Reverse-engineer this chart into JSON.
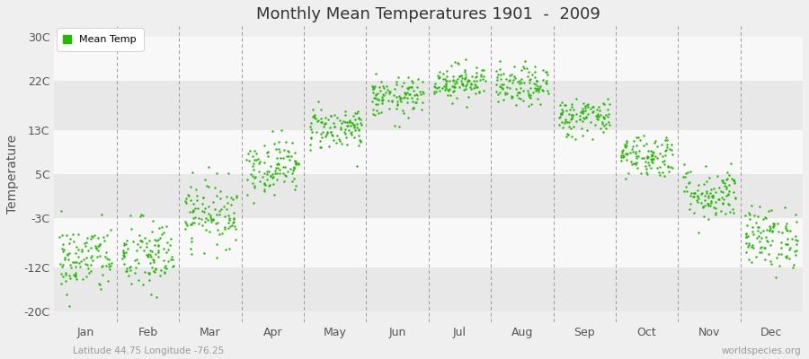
{
  "title": "Monthly Mean Temperatures 1901  -  2009",
  "ylabel": "Temperature",
  "subtitle_left": "Latitude 44.75 Longitude -76.25",
  "subtitle_right": "worldspecies.org",
  "legend_label": "Mean Temp",
  "dot_color": "#22bb00",
  "background_color": "#efefef",
  "band_light": "#f8f8f8",
  "band_dark": "#e8e8e8",
  "yticks": [
    -20,
    -12,
    -3,
    5,
    13,
    22,
    30
  ],
  "ytick_labels": [
    "-20C",
    "-12C",
    "-3C",
    "5C",
    "13C",
    "22C",
    "30C"
  ],
  "ylim": [
    -22,
    32
  ],
  "months": [
    "Jan",
    "Feb",
    "Mar",
    "Apr",
    "May",
    "Jun",
    "Jul",
    "Aug",
    "Sep",
    "Oct",
    "Nov",
    "Dec"
  ],
  "month_means": [
    -10.5,
    -10.0,
    -2.0,
    6.5,
    13.5,
    19.0,
    22.0,
    21.0,
    15.5,
    8.5,
    1.5,
    -6.5
  ],
  "month_stds": [
    3.2,
    3.5,
    3.0,
    2.5,
    2.0,
    1.8,
    1.6,
    1.8,
    1.8,
    2.0,
    2.5,
    2.8
  ],
  "n_years": 109,
  "seed": 42
}
